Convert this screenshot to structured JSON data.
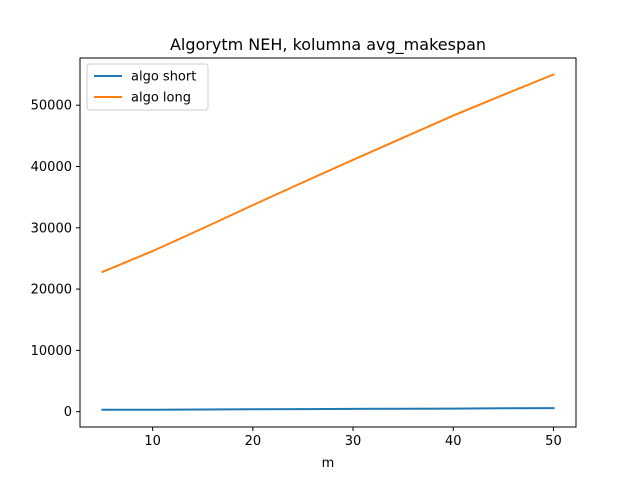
{
  "chart_data": {
    "type": "line",
    "title": "Algorytm NEH, kolumna avg_makespan",
    "xlabel": "m",
    "ylabel": "",
    "xlim": [
      2.75,
      52.25
    ],
    "ylim": [
      -2500,
      57700
    ],
    "xticks": [
      10,
      20,
      30,
      40,
      50
    ],
    "yticks": [
      0,
      10000,
      20000,
      30000,
      40000,
      50000
    ],
    "grid": false,
    "legend": "top-left",
    "series": [
      {
        "name": "algo short",
        "color": "#1f77b4",
        "x": [
          5,
          10,
          15,
          20,
          25,
          30,
          35,
          40,
          45,
          50
        ],
        "y": [
          300,
          330,
          360,
          390,
          420,
          450,
          480,
          510,
          545,
          580
        ]
      },
      {
        "name": "algo long",
        "color": "#ff7f0e",
        "x": [
          5,
          10,
          15,
          20,
          25,
          30,
          35,
          40,
          45,
          50
        ],
        "y": [
          22800,
          26200,
          29900,
          33700,
          37400,
          41100,
          44700,
          48300,
          51700,
          55000
        ]
      }
    ]
  }
}
